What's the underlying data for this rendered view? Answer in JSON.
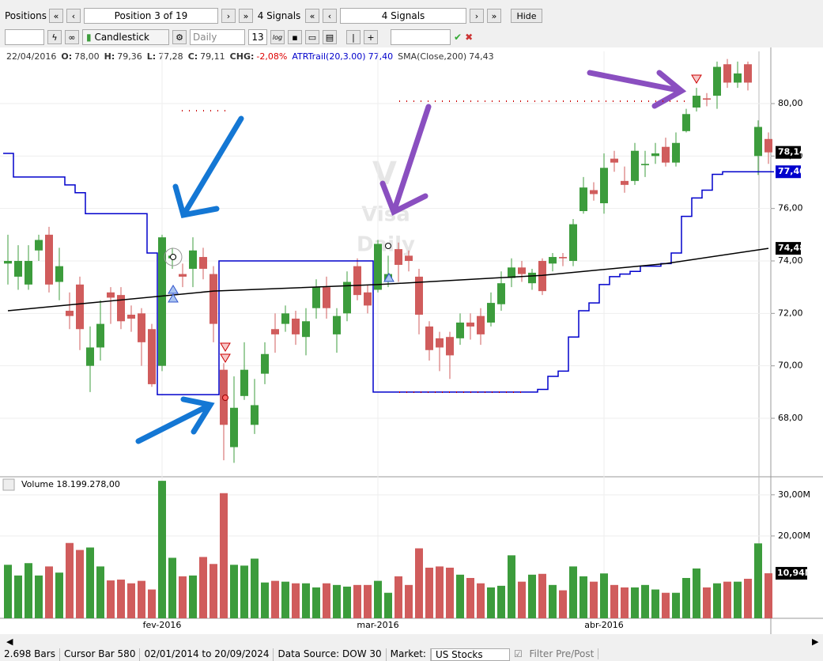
{
  "toolbar": {
    "positions": "Positions",
    "position": "Position 3 of 19",
    "signals_label": "4 Signals",
    "signals_value": "4 Signals",
    "hide": "Hide",
    "chart_style": "Candlestick",
    "period": "Daily",
    "count": "13",
    "log": "log"
  },
  "status": {
    "bars": "2.698 Bars",
    "cursor": "Cursor Bar 580",
    "range": "02/01/2014 to 20/09/2024",
    "source": "Data Source: DOW 30",
    "market_label": "Market:",
    "market": "US Stocks",
    "filter": "Filter Pre/Post"
  },
  "info": [
    "22/04/2016",
    "O:",
    "78,00",
    "H:",
    "79,36",
    "L:",
    "77,28",
    "C:",
    "79,11",
    "CHG:",
    "-2,08%",
    "ATRTrail(20,3.00)",
    "77,40",
    "SMA(Close,200)",
    "74,43"
  ],
  "watermark": [
    "V",
    "Visa",
    "Daily"
  ],
  "chart_data": {
    "type": "candlestick",
    "up_color": "#3c9c3c",
    "down_color": "#d05c5c",
    "categories": [
      null,
      null,
      null,
      null,
      null,
      null,
      null,
      null,
      null,
      null,
      null,
      null,
      null,
      null,
      null,
      "fev-2016",
      null,
      null,
      null,
      null,
      null,
      null,
      null,
      null,
      null,
      null,
      null,
      null,
      null,
      null,
      null,
      null,
      null,
      null,
      null,
      null,
      "mar-2016",
      null,
      null,
      null,
      null,
      null,
      null,
      null,
      null,
      null,
      null,
      null,
      null,
      null,
      null,
      null,
      null,
      null,
      null,
      null,
      null,
      null,
      "abr-2016",
      null,
      null,
      null,
      null,
      null,
      null,
      null,
      null,
      null,
      null,
      null,
      null,
      null,
      null,
      null,
      null
    ],
    "open": [
      73.9,
      73.4,
      73.1,
      74.4,
      75.0,
      73.2,
      72.1,
      73.1,
      70.0,
      70.7,
      72.8,
      72.7,
      71.95,
      72.0,
      71.4,
      70.0,
      74.1,
      73.5,
      73.7,
      74.15,
      73.5,
      69.85,
      66.9,
      68.85,
      67.75,
      69.7,
      71.4,
      71.6,
      71.8,
      71.1,
      72.2,
      73.0,
      71.2,
      72.0,
      73.8,
      72.8,
      72.9,
      73.2,
      74.45,
      74.2,
      73.4,
      71.5,
      71.05,
      71.1,
      71.05,
      71.65,
      71.9,
      71.65,
      72.35,
      73.35,
      73.75,
      73.15,
      74.0,
      73.9,
      74.15,
      74.0,
      75.9,
      76.7,
      76.2,
      77.9,
      77.05,
      77.05,
      77.65,
      78.0,
      78.35,
      77.75,
      78.95,
      79.85,
      80.2,
      80.3,
      81.5,
      80.8,
      81.5,
      78.0,
      78.65
    ],
    "high": [
      75.0,
      74.6,
      74.6,
      75.0,
      75.3,
      74.5,
      72.8,
      73.4,
      71.5,
      72.5,
      73.0,
      73.0,
      72.3,
      72.2,
      71.6,
      75.0,
      74.5,
      73.9,
      74.9,
      74.5,
      73.8,
      70.1,
      69.6,
      70.9,
      69.5,
      70.9,
      72.0,
      72.3,
      72.1,
      72.2,
      73.3,
      73.4,
      72.2,
      73.6,
      74.1,
      73.1,
      74.8,
      74.2,
      74.7,
      74.4,
      73.7,
      71.7,
      71.3,
      71.3,
      72.0,
      72.0,
      72.2,
      72.8,
      73.6,
      74.1,
      74.0,
      73.7,
      74.1,
      74.3,
      74.3,
      75.6,
      77.2,
      77.0,
      78.1,
      78.2,
      77.6,
      78.5,
      78.2,
      78.5,
      78.7,
      78.9,
      79.8,
      80.6,
      80.4,
      81.6,
      81.7,
      81.6,
      81.6,
      79.36,
      78.9
    ],
    "low": [
      73.1,
      72.9,
      72.9,
      74.0,
      72.8,
      72.5,
      71.4,
      70.6,
      69.0,
      70.2,
      71.6,
      71.4,
      71.3,
      70.0,
      69.2,
      69.8,
      73.7,
      73.0,
      73.0,
      73.3,
      70.9,
      66.4,
      66.3,
      68.7,
      67.4,
      69.3,
      70.5,
      71.3,
      70.8,
      70.4,
      71.8,
      71.8,
      70.5,
      71.7,
      72.5,
      72.0,
      72.8,
      73.0,
      73.2,
      73.6,
      71.2,
      70.2,
      69.8,
      69.5,
      70.8,
      71.0,
      70.8,
      71.5,
      72.1,
      73.0,
      73.2,
      72.9,
      72.7,
      73.6,
      73.8,
      73.8,
      75.8,
      76.3,
      75.8,
      77.4,
      76.6,
      76.9,
      77.2,
      77.7,
      77.6,
      77.6,
      78.9,
      79.7,
      79.9,
      79.8,
      80.6,
      80.6,
      80.5,
      77.28,
      77.7
    ],
    "close": [
      74.0,
      74.0,
      74.0,
      74.8,
      73.1,
      73.8,
      71.9,
      71.4,
      70.7,
      71.6,
      72.6,
      71.7,
      71.8,
      70.9,
      69.3,
      74.9,
      74.2,
      73.4,
      74.4,
      73.7,
      71.6,
      67.75,
      68.4,
      69.85,
      68.5,
      70.45,
      71.2,
      72.0,
      71.2,
      71.7,
      73.0,
      72.2,
      71.9,
      73.2,
      72.7,
      72.3,
      74.65,
      73.5,
      73.85,
      74.0,
      71.95,
      70.6,
      70.7,
      70.4,
      71.65,
      71.5,
      71.2,
      72.4,
      73.15,
      73.75,
      73.5,
      73.55,
      72.85,
      74.15,
      74.1,
      75.4,
      76.8,
      76.55,
      77.55,
      77.75,
      76.9,
      78.2,
      77.7,
      78.1,
      77.75,
      78.5,
      79.6,
      80.3,
      80.15,
      81.4,
      80.8,
      81.15,
      80.8,
      79.11,
      78.14
    ],
    "atr": {
      "name": "ATRTrail",
      "color": "#0000cc",
      "values": [
        78.1,
        77.2,
        77.2,
        77.2,
        77.2,
        77.2,
        76.9,
        76.6,
        75.8,
        75.8,
        75.8,
        75.8,
        75.8,
        75.8,
        74.3,
        68.9,
        68.9,
        68.9,
        68.9,
        68.9,
        68.9,
        74.0,
        74.0,
        74.0,
        74.0,
        74.0,
        74.0,
        74.0,
        74.0,
        74.0,
        74.0,
        74.0,
        74.0,
        74.0,
        74.0,
        74.0,
        69.0,
        69.0,
        69.0,
        69.0,
        69.0,
        69.0,
        69.0,
        69.0,
        69.0,
        69.0,
        69.0,
        69.0,
        69.0,
        69.0,
        69.0,
        69.0,
        69.1,
        69.6,
        69.8,
        71.1,
        72.1,
        72.4,
        73.1,
        73.4,
        73.5,
        73.6,
        73.8,
        73.8,
        73.9,
        74.3,
        75.7,
        76.4,
        76.7,
        77.3,
        77.4,
        77.4,
        77.4,
        77.4,
        77.4
      ]
    },
    "sma": {
      "name": "SMA",
      "color": "#000000",
      "x": [
        0,
        20,
        36,
        52,
        64,
        74
      ],
      "values": [
        72.1,
        72.85,
        73.1,
        73.45,
        73.9,
        74.48
      ]
    },
    "ylim": [
      65.86,
      81.99
    ],
    "yticks": [
      {
        "value": 68,
        "label": "68,00"
      },
      {
        "value": 70,
        "label": "70,00"
      },
      {
        "value": 72,
        "label": "72,00"
      },
      {
        "value": 74,
        "label": "74,00"
      },
      {
        "value": 76,
        "label": "76,00"
      },
      {
        "value": 78,
        "label": "78,00"
      },
      {
        "value": 80,
        "label": "80,00"
      }
    ],
    "markers": [
      {
        "value": 78.14,
        "label": "78,14",
        "color": "#000000"
      },
      {
        "value": 77.4,
        "label": "77,40",
        "color": "#0000cc"
      },
      {
        "value": 74.48,
        "label": "74,48",
        "color": "#000000"
      }
    ],
    "grid": true,
    "volume": {
      "title": "Volume 18.199.278,00",
      "values": [
        13.0,
        10.4,
        13.4,
        10.4,
        12.6,
        11.1,
        18.3,
        16.6,
        17.2,
        12.6,
        9.2,
        9.4,
        8.5,
        9.1,
        7.0,
        33.4,
        14.7,
        10.2,
        10.4,
        14.9,
        13.2,
        30.4,
        13.0,
        12.8,
        14.5,
        8.7,
        9.1,
        8.9,
        8.5,
        8.5,
        7.5,
        8.5,
        8.1,
        7.7,
        8.1,
        8.1,
        9.1,
        6.2,
        10.2,
        8.1,
        17.0,
        12.3,
        12.6,
        12.3,
        10.6,
        9.8,
        8.5,
        7.5,
        7.9,
        15.3,
        8.9,
        10.6,
        10.8,
        8.1,
        6.8,
        12.6,
        10.2,
        8.9,
        10.9,
        8.1,
        7.5,
        7.5,
        8.1,
        7.0,
        6.2,
        6.2,
        9.8,
        12.1,
        7.5,
        8.5,
        8.9,
        8.9,
        9.6,
        18.2,
        10.94
      ],
      "ylim": [
        0,
        34
      ],
      "yticks": [
        {
          "value": 20,
          "label": "20,00M"
        },
        {
          "value": 30,
          "label": "30,00M"
        }
      ],
      "marker": {
        "value": 10.94,
        "label": "10,94M"
      }
    }
  }
}
